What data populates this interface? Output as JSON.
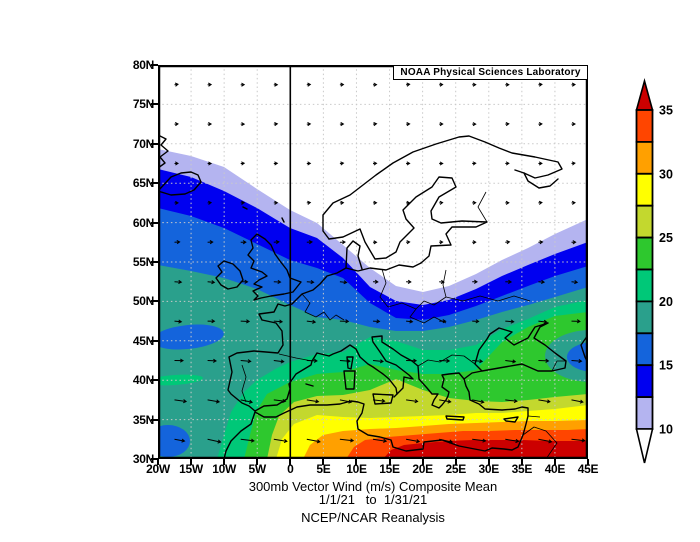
{
  "header": {
    "lab_label": "NOAA Physical Sciences Laboratory"
  },
  "titles": {
    "line1": "300mb Vector Wind (m/s) Composite Mean",
    "line2": "1/1/21   to  1/31/21",
    "line3": "NCEP/NCAR Reanalysis"
  },
  "axes": {
    "lat_labels": [
      "80N",
      "75N",
      "70N",
      "65N",
      "60N",
      "55N",
      "50N",
      "45N",
      "40N",
      "35N",
      "30N"
    ],
    "lon_labels": [
      "20W",
      "15W",
      "10W",
      "5W",
      "0",
      "5E",
      "10E",
      "15E",
      "20E",
      "25E",
      "30E",
      "35E",
      "40E",
      "45E"
    ],
    "grid_step_deg": 5
  },
  "colorbar": {
    "units": "m/s",
    "labels": [
      35,
      30,
      25,
      20,
      15,
      10
    ],
    "over_color": "#cc0000",
    "under_color": "#ffffff",
    "segments": [
      {
        "min": 32.5,
        "max": 35,
        "color": "#ff4500"
      },
      {
        "min": 30,
        "max": 32.5,
        "color": "#ffa000"
      },
      {
        "min": 27.5,
        "max": 30,
        "color": "#ffff00"
      },
      {
        "min": 25,
        "max": 27.5,
        "color": "#c3d82e"
      },
      {
        "min": 22.5,
        "max": 25,
        "color": "#2ec82e"
      },
      {
        "min": 20,
        "max": 22.5,
        "color": "#00c878"
      },
      {
        "min": 17.5,
        "max": 20,
        "color": "#2aa08c"
      },
      {
        "min": 15,
        "max": 17.5,
        "color": "#1464dc"
      },
      {
        "min": 12.5,
        "max": 15,
        "color": "#0000f0"
      },
      {
        "min": 10,
        "max": 12.5,
        "color": "#b4b4f0"
      }
    ]
  },
  "vectors": {
    "spacing_deg": 5,
    "direction": "westerly",
    "color": "#000000"
  },
  "chart_data": {
    "type": "heatmap",
    "title": "300mb Vector Wind (m/s) Composite Mean",
    "subtitle": "1/1/21 to 1/31/21",
    "source": "NCEP/NCAR Reanalysis",
    "provider": "NOAA Physical Sciences Laboratory",
    "variable": "300mb vector wind speed, monthly composite mean",
    "units": "m/s",
    "x": {
      "label": "longitude",
      "min_deg": -20,
      "max_deg": 45,
      "tick_step_deg": 5
    },
    "y": {
      "label": "latitude",
      "min_deg": 30,
      "max_deg": 80,
      "tick_step_deg": 5
    },
    "contour_levels": [
      10,
      12.5,
      15,
      17.5,
      20,
      22.5,
      25,
      27.5,
      30,
      32.5,
      35
    ],
    "colorbar_labels": [
      10,
      15,
      20,
      25,
      30,
      35
    ],
    "grid": "dotted graticule every 5 degrees; solid line along 0 longitude",
    "overlay": "wind vector arrows on ~5 degree grid, generally westerly, longer toward the south",
    "features": [
      "speeds below 10 m/s (white) over Scandinavia, the Baltic, NW Russia and the Arctic north of ~62N",
      "band boundaries slope from ~69N at 20W down to a minimum tongue near 51N over Poland (~15-22E), then rise northeastward to ~60N at 45E",
      "subtropical jet maximum above 35 m/s (dark red) along 30-32N over North Africa from ~14E eastward to 45E",
      "secondary wind minimum (below ~17.5 m/s, blue over teal) near the Caucasus/Caspian around 43N 45E",
      "local Atlantic minima (medium blue blobs) near 45.5N 15W and near 32N 18W",
      "yellow-green maximum lobe over southern Italy / Ionian Sea around 38-41N"
    ],
    "approx_band_latitude_by_longitude": {
      "note": "northern boundary latitude of each shaded band, read at lon -20/0/20/45 E",
      "10": [
        69.3,
        61.6,
        51.2,
        60.5
      ],
      "12.5": [
        66.8,
        59.3,
        49.5,
        57.5
      ],
      "15": [
        61.8,
        55.2,
        47.7,
        54.5
      ],
      "17.5": [
        54.6,
        49.5,
        46.3,
        51.8
      ],
      "20": [
        40.3,
        42.3,
        43.8,
        50.2
      ],
      "25": [
        null,
        37.2,
        39.0,
        38.3
      ],
      "30": [
        null,
        34.5,
        34.2,
        35.0
      ],
      "35": [
        null,
        null,
        32.2,
        32.3
      ]
    }
  }
}
